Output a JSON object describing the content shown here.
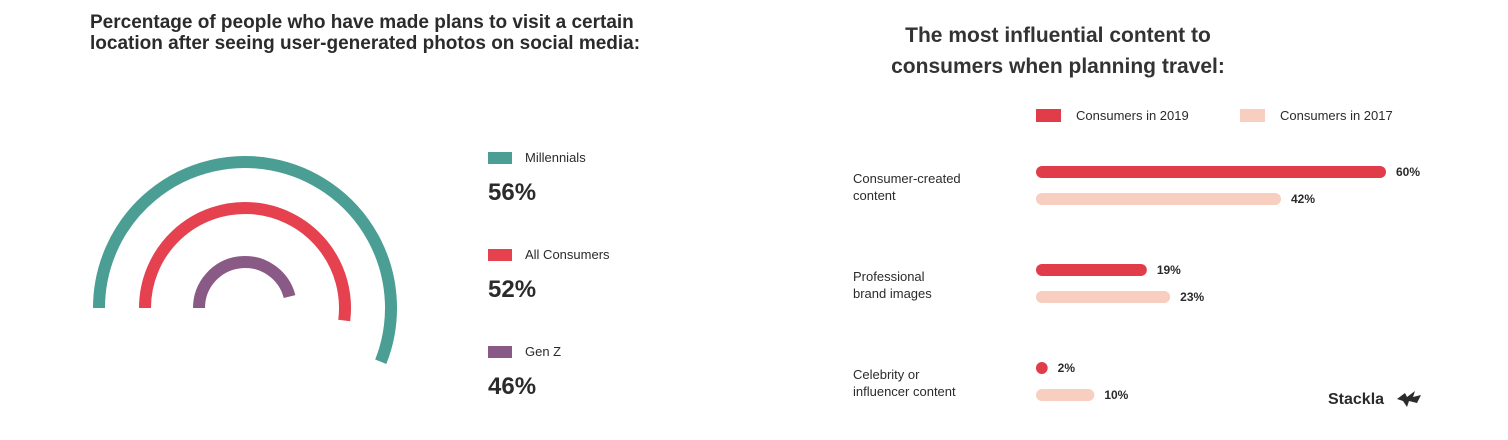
{
  "colors": {
    "millennials": "#4a9e93",
    "all_consumers": "#e5414f",
    "gen_z": "#8a5a86",
    "consumers_2019": "#e03c49",
    "consumers_2017": "#f8cec0",
    "text": "#2b2b2b"
  },
  "chart_data": [
    {
      "type": "radial-arc",
      "title": "Percentage of people who have made plans to visit a certain location after seeing user-generated photos on social media:",
      "series": [
        {
          "name": "Millennials",
          "value": 56,
          "label": "56%",
          "color_key": "millennials"
        },
        {
          "name": "All Consumers",
          "value": 52,
          "label": "52%",
          "color_key": "all_consumers"
        },
        {
          "name": "Gen Z",
          "value": 46,
          "label": "46%",
          "color_key": "gen_z"
        }
      ]
    },
    {
      "type": "bar",
      "orientation": "horizontal",
      "title": "The most influential content to consumers when planning travel:",
      "legend_position": "top",
      "categories": [
        [
          "Consumer-created",
          "content"
        ],
        [
          "Professional",
          "brand images"
        ],
        [
          "Celebrity or",
          "influencer content"
        ]
      ],
      "series": [
        {
          "name": "Consumers in 2019",
          "values": [
            60,
            19,
            2
          ],
          "labels": [
            "60%",
            "19%",
            "2%"
          ],
          "color_key": "consumers_2019"
        },
        {
          "name": "Consumers in 2017",
          "values": [
            42,
            23,
            10
          ],
          "labels": [
            "42%",
            "23%",
            "10%"
          ],
          "color_key": "consumers_2017"
        }
      ]
    }
  ],
  "brand": "Stackla"
}
